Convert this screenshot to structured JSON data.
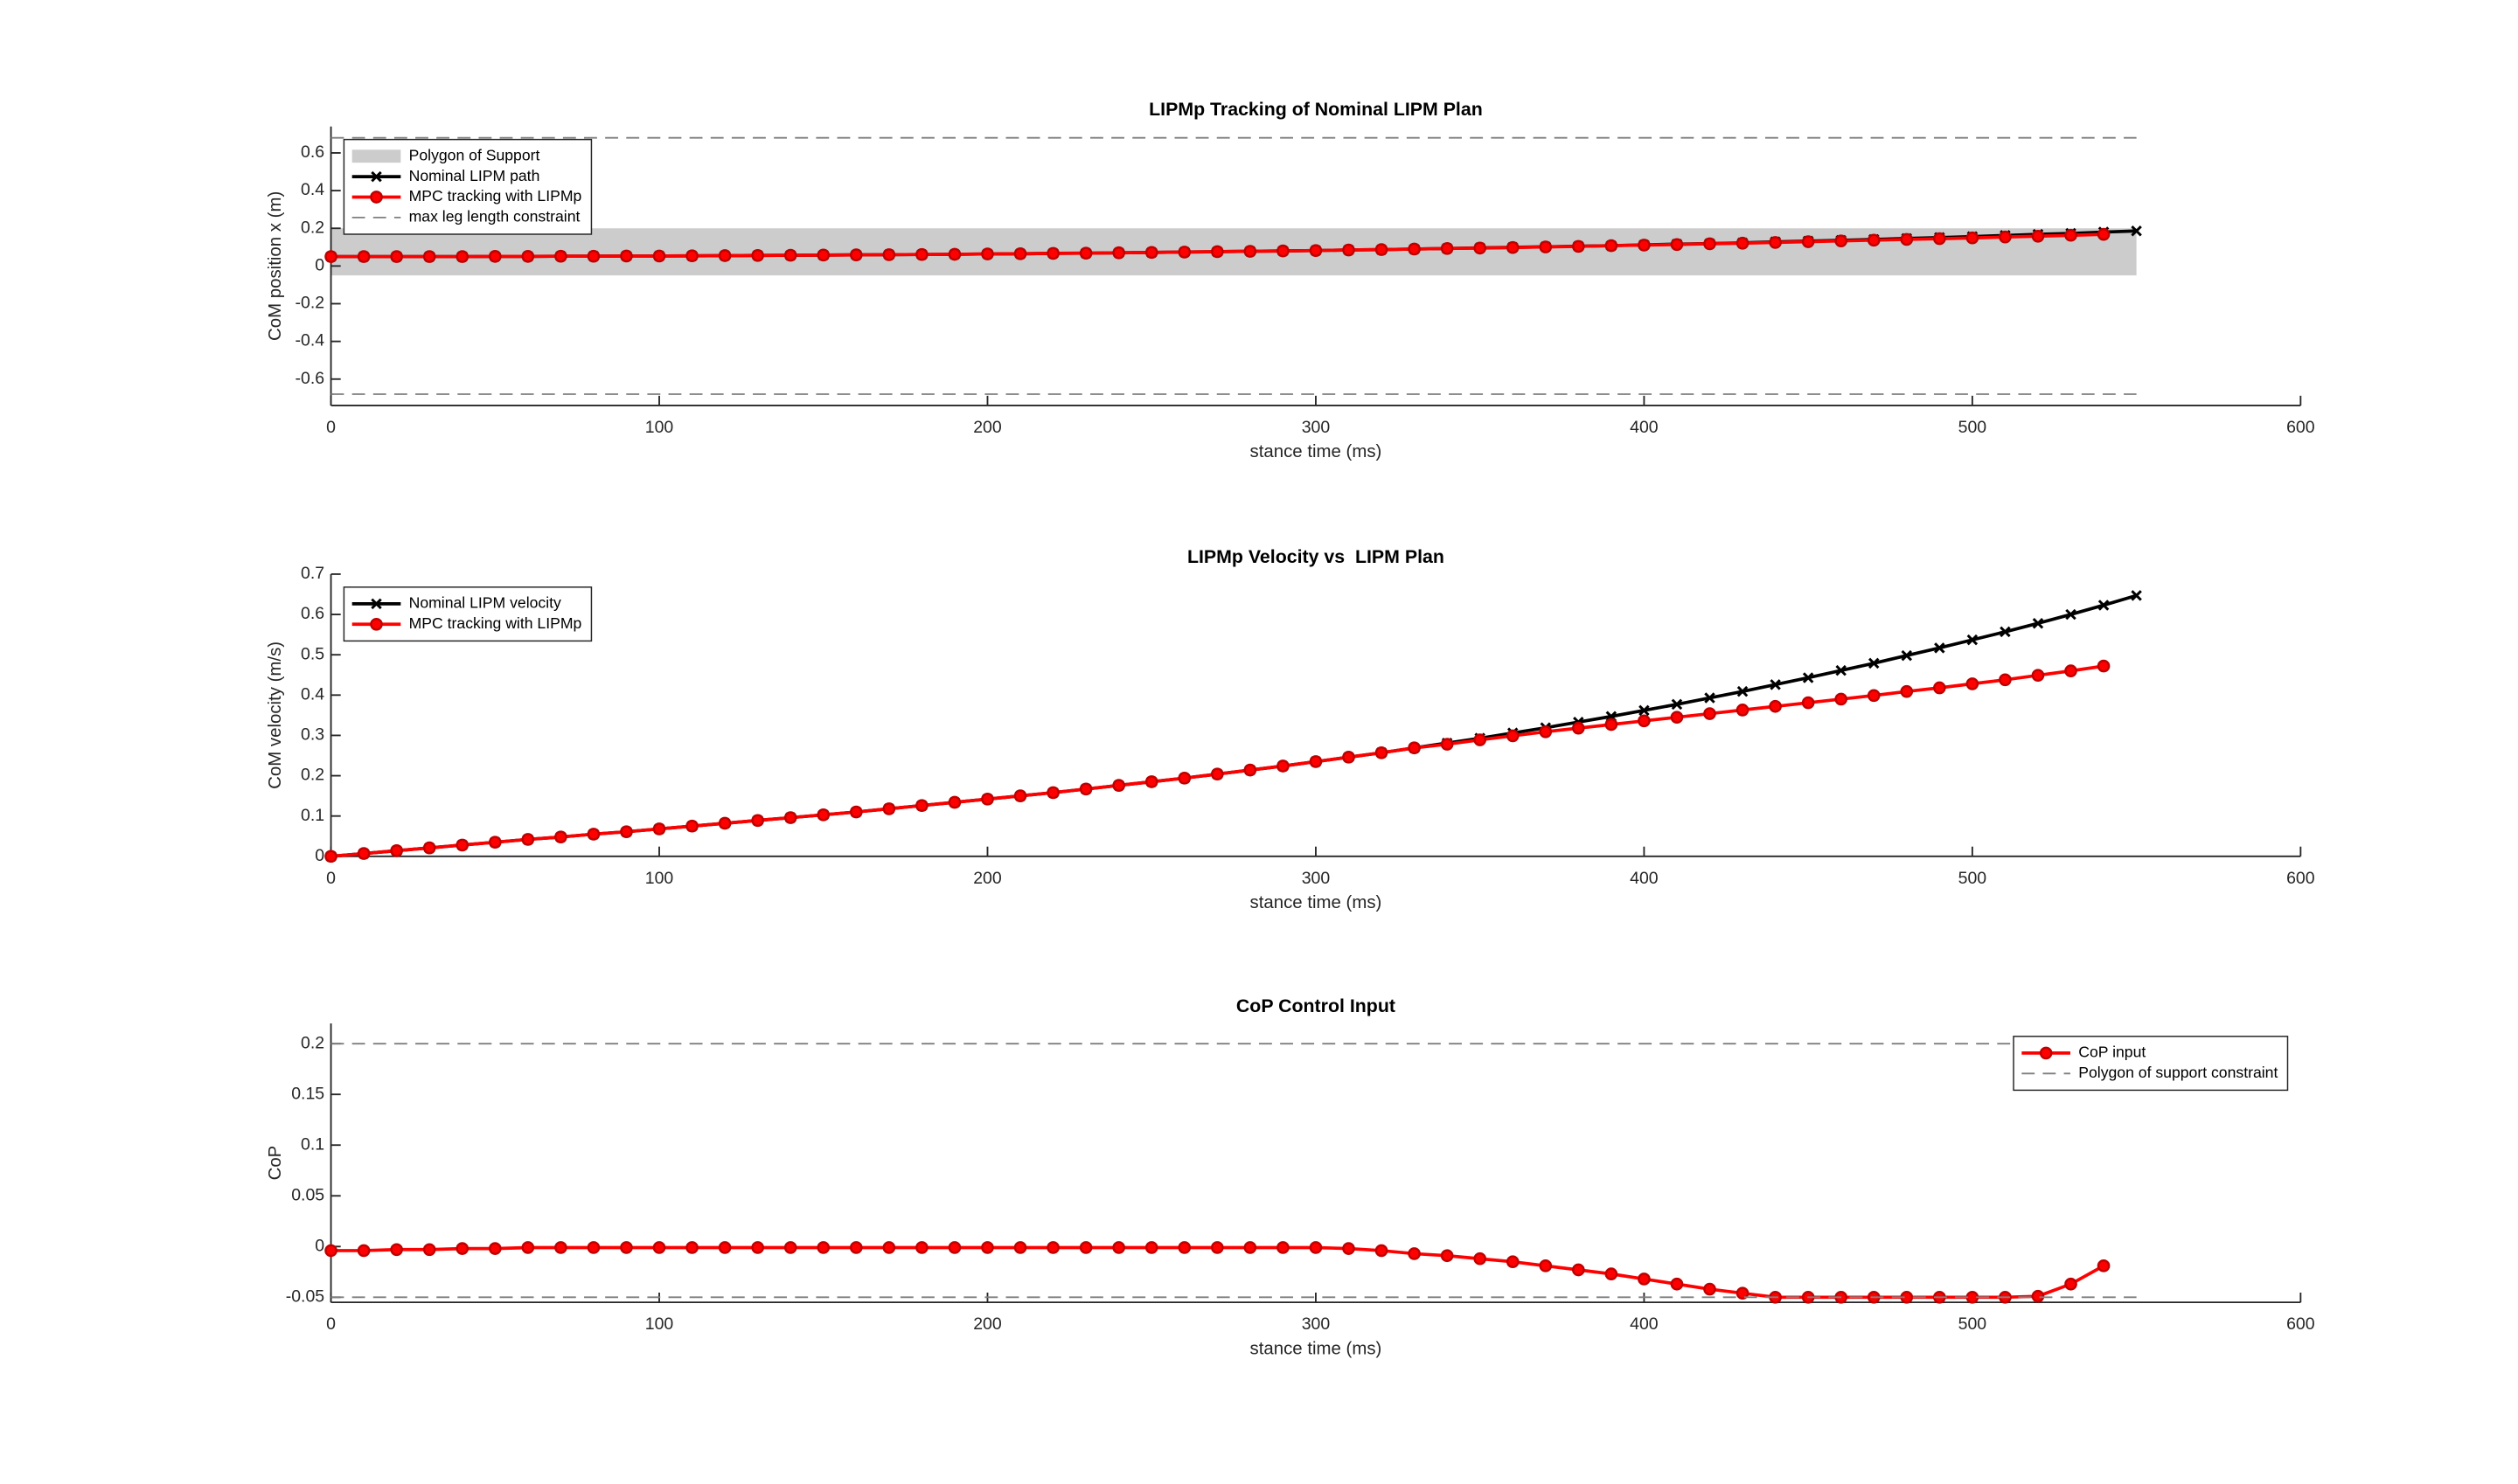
{
  "chart_data": [
    {
      "type": "line",
      "title": "LIPMp Tracking of Nominal LIPM Plan",
      "xlabel": "stance time (ms)",
      "ylabel": "CoM position x (m)",
      "xlim": [
        0,
        600
      ],
      "xticks": [
        0,
        100,
        200,
        300,
        400,
        500,
        600
      ],
      "ylim": [
        -0.74,
        0.74
      ],
      "yticks": [
        -0.6,
        -0.4,
        -0.2,
        0,
        0.2,
        0.4,
        0.6
      ],
      "legend": "upper left",
      "series": [
        {
          "name": "Polygon of Support",
          "kind": "area",
          "color": "#cccccc",
          "x_extent": [
            0,
            550
          ],
          "values": [
            -0.05,
            0.2
          ]
        },
        {
          "name": "Nominal LIPM path",
          "kind": "line",
          "marker": "x",
          "color": "#000000",
          "x": [
            0,
            10,
            20,
            30,
            40,
            50,
            60,
            70,
            80,
            90,
            100,
            110,
            120,
            130,
            140,
            150,
            160,
            170,
            180,
            190,
            200,
            210,
            220,
            230,
            240,
            250,
            260,
            270,
            280,
            290,
            300,
            310,
            320,
            330,
            340,
            350,
            360,
            370,
            380,
            390,
            400,
            410,
            420,
            430,
            440,
            450,
            460,
            470,
            480,
            490,
            500,
            510,
            520,
            530,
            540,
            550
          ],
          "values": [
            0.05,
            0.05,
            0.05,
            0.05,
            0.05,
            0.051,
            0.051,
            0.052,
            0.052,
            0.053,
            0.053,
            0.054,
            0.055,
            0.056,
            0.057,
            0.058,
            0.059,
            0.06,
            0.061,
            0.062,
            0.064,
            0.065,
            0.067,
            0.068,
            0.07,
            0.072,
            0.074,
            0.076,
            0.078,
            0.08,
            0.082,
            0.085,
            0.087,
            0.09,
            0.093,
            0.096,
            0.099,
            0.102,
            0.105,
            0.108,
            0.112,
            0.116,
            0.119,
            0.123,
            0.128,
            0.132,
            0.136,
            0.141,
            0.146,
            0.151,
            0.156,
            0.162,
            0.168,
            0.173,
            0.18,
            0.186
          ]
        },
        {
          "name": "MPC tracking with LIPMp",
          "kind": "line",
          "marker": "o",
          "color": "#ff0000",
          "x": [
            0,
            10,
            20,
            30,
            40,
            50,
            60,
            70,
            80,
            90,
            100,
            110,
            120,
            130,
            140,
            150,
            160,
            170,
            180,
            190,
            200,
            210,
            220,
            230,
            240,
            250,
            260,
            270,
            280,
            290,
            300,
            310,
            320,
            330,
            340,
            350,
            360,
            370,
            380,
            390,
            400,
            410,
            420,
            430,
            440,
            450,
            460,
            470,
            480,
            490,
            500,
            510,
            520,
            530,
            540
          ],
          "values": [
            0.05,
            0.05,
            0.05,
            0.05,
            0.05,
            0.051,
            0.051,
            0.052,
            0.052,
            0.053,
            0.053,
            0.054,
            0.055,
            0.056,
            0.057,
            0.058,
            0.059,
            0.06,
            0.061,
            0.062,
            0.064,
            0.065,
            0.067,
            0.068,
            0.07,
            0.072,
            0.074,
            0.076,
            0.078,
            0.08,
            0.082,
            0.085,
            0.087,
            0.09,
            0.093,
            0.095,
            0.098,
            0.101,
            0.104,
            0.108,
            0.111,
            0.114,
            0.118,
            0.121,
            0.125,
            0.129,
            0.133,
            0.137,
            0.141,
            0.145,
            0.149,
            0.154,
            0.158,
            0.163,
            0.168
          ]
        },
        {
          "name": "max leg length constraint",
          "kind": "hline",
          "color": "#7f7f7f",
          "x_extent": [
            0,
            550
          ],
          "values": [
            0.68,
            -0.68
          ]
        }
      ]
    },
    {
      "type": "line",
      "title": "LIPMp Velocity vs  LIPM Plan",
      "xlabel": "stance time (ms)",
      "ylabel": "CoM velocity (m/s)",
      "xlim": [
        0,
        600
      ],
      "xticks": [
        0,
        100,
        200,
        300,
        400,
        500,
        600
      ],
      "ylim": [
        0,
        0.7
      ],
      "yticks": [
        0,
        0.1,
        0.2,
        0.3,
        0.4,
        0.5,
        0.6,
        0.7
      ],
      "legend": "upper left",
      "series": [
        {
          "name": "Nominal LIPM velocity",
          "kind": "line",
          "marker": "x",
          "color": "#000000",
          "x": [
            0,
            10,
            20,
            30,
            40,
            50,
            60,
            70,
            80,
            90,
            100,
            110,
            120,
            130,
            140,
            150,
            160,
            170,
            180,
            190,
            200,
            210,
            220,
            230,
            240,
            250,
            260,
            270,
            280,
            290,
            300,
            310,
            320,
            330,
            340,
            350,
            360,
            370,
            380,
            390,
            400,
            410,
            420,
            430,
            440,
            450,
            460,
            470,
            480,
            490,
            500,
            510,
            520,
            530,
            540,
            550
          ],
          "values": [
            0,
            0.007,
            0.014,
            0.021,
            0.028,
            0.035,
            0.042,
            0.048,
            0.055,
            0.061,
            0.068,
            0.075,
            0.082,
            0.089,
            0.096,
            0.103,
            0.11,
            0.118,
            0.126,
            0.134,
            0.142,
            0.15,
            0.158,
            0.167,
            0.176,
            0.185,
            0.194,
            0.204,
            0.214,
            0.224,
            0.235,
            0.246,
            0.257,
            0.269,
            0.281,
            0.293,
            0.306,
            0.319,
            0.333,
            0.347,
            0.362,
            0.377,
            0.393,
            0.409,
            0.426,
            0.443,
            0.461,
            0.479,
            0.498,
            0.517,
            0.537,
            0.557,
            0.578,
            0.6,
            0.623,
            0.647
          ]
        },
        {
          "name": "MPC tracking with LIPMp",
          "kind": "line",
          "marker": "o",
          "color": "#ff0000",
          "x": [
            0,
            10,
            20,
            30,
            40,
            50,
            60,
            70,
            80,
            90,
            100,
            110,
            120,
            130,
            140,
            150,
            160,
            170,
            180,
            190,
            200,
            210,
            220,
            230,
            240,
            250,
            260,
            270,
            280,
            290,
            300,
            310,
            320,
            330,
            340,
            350,
            360,
            370,
            380,
            390,
            400,
            410,
            420,
            430,
            440,
            450,
            460,
            470,
            480,
            490,
            500,
            510,
            520,
            530,
            540
          ],
          "values": [
            0,
            0.007,
            0.014,
            0.021,
            0.028,
            0.035,
            0.042,
            0.048,
            0.055,
            0.061,
            0.068,
            0.075,
            0.082,
            0.089,
            0.096,
            0.103,
            0.11,
            0.118,
            0.126,
            0.134,
            0.142,
            0.15,
            0.158,
            0.167,
            0.176,
            0.185,
            0.194,
            0.204,
            0.214,
            0.224,
            0.235,
            0.246,
            0.257,
            0.269,
            0.278,
            0.289,
            0.299,
            0.309,
            0.318,
            0.327,
            0.336,
            0.345,
            0.354,
            0.363,
            0.372,
            0.381,
            0.39,
            0.399,
            0.409,
            0.418,
            0.428,
            0.438,
            0.449,
            0.46,
            0.472
          ]
        }
      ]
    },
    {
      "type": "line",
      "title": "CoP Control Input",
      "xlabel": "stance time (ms)",
      "ylabel": "CoP",
      "xlim": [
        0,
        600
      ],
      "xticks": [
        0,
        100,
        200,
        300,
        400,
        500,
        600
      ],
      "ylim": [
        -0.055,
        0.22
      ],
      "yticks": [
        -0.05,
        0,
        0.05,
        0.1,
        0.15,
        0.2
      ],
      "legend": "upper right",
      "series": [
        {
          "name": "CoP input",
          "kind": "line",
          "marker": "o",
          "color": "#ff0000",
          "x": [
            0,
            10,
            20,
            30,
            40,
            50,
            60,
            70,
            80,
            90,
            100,
            110,
            120,
            130,
            140,
            150,
            160,
            170,
            180,
            190,
            200,
            210,
            220,
            230,
            240,
            250,
            260,
            270,
            280,
            290,
            300,
            310,
            320,
            330,
            340,
            350,
            360,
            370,
            380,
            390,
            400,
            410,
            420,
            430,
            440,
            450,
            460,
            470,
            480,
            490,
            500,
            510,
            520,
            530,
            540
          ],
          "values": [
            -0.004,
            -0.004,
            -0.003,
            -0.003,
            -0.002,
            -0.002,
            -0.001,
            -0.001,
            -0.001,
            -0.001,
            -0.001,
            -0.001,
            -0.001,
            -0.001,
            -0.001,
            -0.001,
            -0.001,
            -0.001,
            -0.001,
            -0.001,
            -0.001,
            -0.001,
            -0.001,
            -0.001,
            -0.001,
            -0.001,
            -0.001,
            -0.001,
            -0.001,
            -0.001,
            -0.001,
            -0.002,
            -0.004,
            -0.007,
            -0.009,
            -0.012,
            -0.015,
            -0.019,
            -0.023,
            -0.027,
            -0.032,
            -0.037,
            -0.042,
            -0.046,
            -0.05,
            -0.05,
            -0.05,
            -0.05,
            -0.05,
            -0.05,
            -0.05,
            -0.05,
            -0.049,
            -0.037,
            -0.019
          ]
        },
        {
          "name": "Polygon of support constraint",
          "kind": "hline",
          "color": "#7f7f7f",
          "x_extent": [
            0,
            550
          ],
          "values": [
            0.2,
            -0.05
          ]
        }
      ]
    }
  ]
}
